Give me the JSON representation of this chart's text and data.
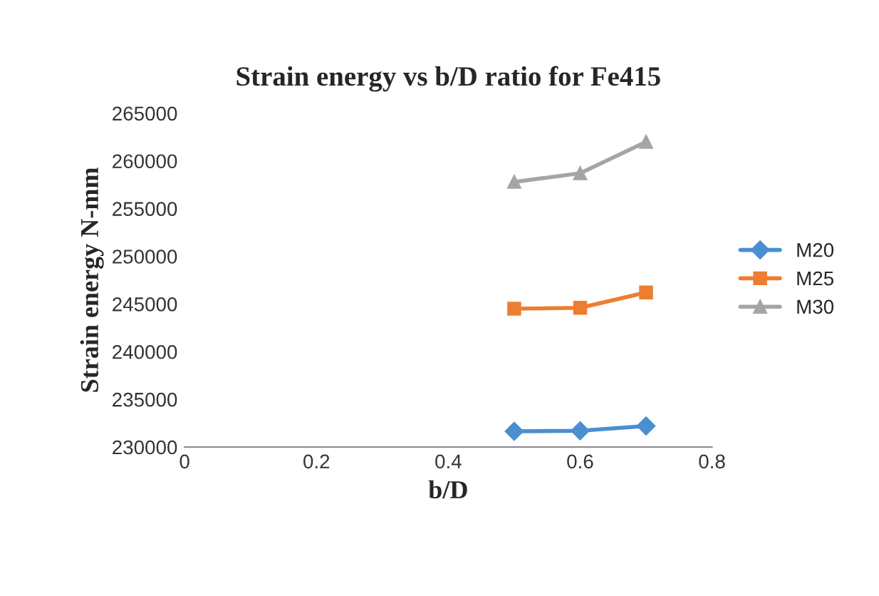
{
  "chart_data": {
    "type": "line",
    "title": "Strain energy vs b/D ratio for Fe415",
    "xlabel": "b/D",
    "ylabel": "Strain energy N-mm",
    "x": [
      0.5,
      0.6,
      0.7
    ],
    "series": [
      {
        "name": "M20",
        "color": "#4a8fd0",
        "marker": "diamond",
        "values": [
          231650,
          231700,
          232200
        ]
      },
      {
        "name": "M25",
        "color": "#ed7d31",
        "marker": "square",
        "values": [
          244500,
          244600,
          246200
        ]
      },
      {
        "name": "M30",
        "color": "#a5a5a5",
        "marker": "triangle",
        "values": [
          257800,
          258700,
          262000
        ]
      }
    ],
    "xlim": [
      0,
      0.8
    ],
    "xticks": [
      0,
      0.2,
      0.4,
      0.6,
      0.8
    ],
    "ylim": [
      230000,
      265000
    ],
    "yticks": [
      230000,
      235000,
      240000,
      245000,
      250000,
      255000,
      260000,
      265000
    ],
    "grid": false,
    "legend": "right"
  }
}
